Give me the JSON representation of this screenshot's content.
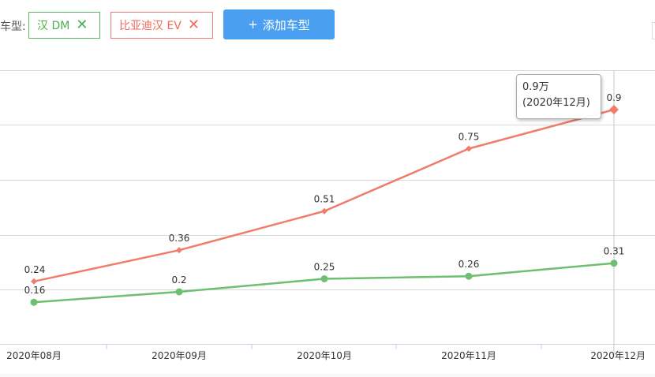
{
  "filters": {
    "label": "车型:",
    "tags": [
      {
        "name": "汉 DM",
        "color": "#5cb85c"
      },
      {
        "name": "比亚迪汉 EV",
        "color": "#f07c6c"
      }
    ],
    "remove_glyph": "✕",
    "add_button": {
      "plus": "+",
      "label": "添加车型"
    }
  },
  "chart_data": {
    "type": "line",
    "categories": [
      "2020年08月",
      "2020年09月",
      "2020年10月",
      "2020年11月",
      "2020年12月"
    ],
    "series": [
      {
        "name": "比亚迪汉 EV",
        "values": [
          0.24,
          0.36,
          0.51,
          0.75,
          0.9
        ],
        "color": "#f07c6c",
        "marker": "diamond"
      },
      {
        "name": "汉 DM",
        "values": [
          0.16,
          0.2,
          0.25,
          0.26,
          0.31
        ],
        "color": "#6cc070",
        "marker": "circle"
      }
    ],
    "ylim": [
      0,
      1.05
    ],
    "grid": true,
    "title": "",
    "xlabel": "",
    "ylabel": ""
  },
  "tooltip": {
    "value": "0.9万",
    "period": "(2020年12月)"
  }
}
